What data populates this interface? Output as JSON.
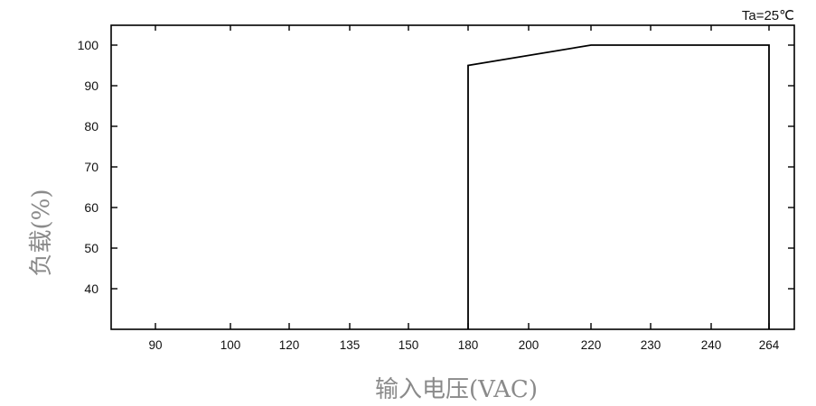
{
  "chart_data": {
    "type": "line",
    "annotation": "Ta=25℃",
    "xlabel": "输入电压(VAC)",
    "ylabel": "负载(%)",
    "x_categories": [
      "90",
      "100",
      "120",
      "135",
      "150",
      "180",
      "200",
      "220",
      "230",
      "240",
      "264"
    ],
    "y_ticks": [
      40,
      50,
      60,
      70,
      80,
      90,
      100
    ],
    "ylim": [
      30,
      105
    ],
    "grid": false,
    "series": [
      {
        "x": [
          "180",
          "180",
          "220",
          "264",
          "264"
        ],
        "y": [
          30,
          95,
          100,
          100,
          30
        ]
      }
    ]
  }
}
